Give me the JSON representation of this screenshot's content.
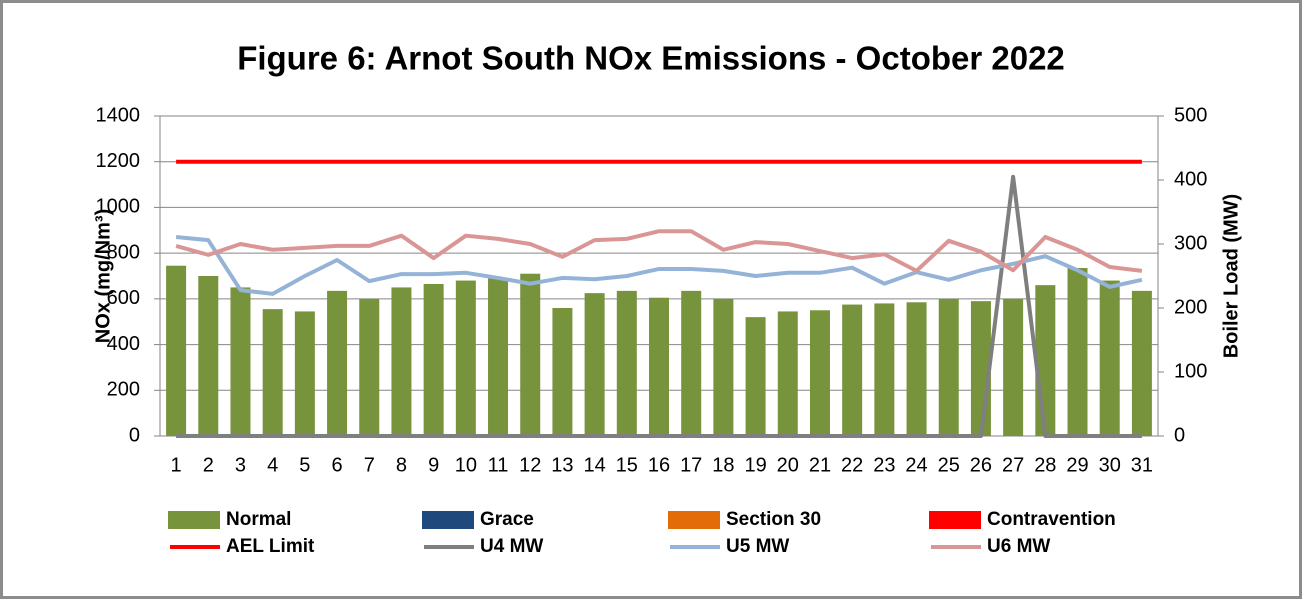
{
  "chart_data": {
    "type": "bar",
    "title": "Figure 6: Arnot South NOx Emissions -  October 2022",
    "ylabel": "NOx (mg/Nm³)",
    "y2label": "Boiler Load (MW)",
    "categories": [
      "1",
      "2",
      "3",
      "4",
      "5",
      "6",
      "7",
      "8",
      "9",
      "10",
      "11",
      "12",
      "13",
      "14",
      "15",
      "16",
      "17",
      "18",
      "19",
      "20",
      "21",
      "22",
      "23",
      "24",
      "25",
      "26",
      "27",
      "28",
      "29",
      "30",
      "31"
    ],
    "stacked": true,
    "grid": true,
    "ylim": [
      0,
      1400
    ],
    "yticks": [
      0,
      200,
      400,
      600,
      800,
      1000,
      1200,
      1400
    ],
    "y2lim": [
      0,
      500
    ],
    "y2ticks": [
      0,
      100,
      200,
      300,
      400,
      500
    ],
    "series": [
      {
        "name": "Normal",
        "type": "bar",
        "color": "#77933c",
        "values": [
          745,
          700,
          650,
          555,
          545,
          635,
          600,
          650,
          665,
          680,
          690,
          710,
          560,
          625,
          635,
          605,
          635,
          600,
          520,
          545,
          550,
          575,
          580,
          585,
          600,
          590,
          600,
          660,
          735,
          680,
          635
        ]
      },
      {
        "name": "Grace",
        "type": "bar",
        "color": "#1f497d",
        "values": [
          0,
          0,
          0,
          0,
          0,
          0,
          0,
          0,
          0,
          0,
          0,
          0,
          0,
          0,
          0,
          0,
          0,
          0,
          0,
          0,
          0,
          0,
          0,
          0,
          0,
          0,
          0,
          0,
          0,
          0,
          0
        ]
      },
      {
        "name": "Section 30",
        "type": "bar",
        "color": "#e36c09",
        "values": [
          0,
          0,
          0,
          0,
          0,
          0,
          0,
          0,
          0,
          0,
          0,
          0,
          0,
          0,
          0,
          0,
          0,
          0,
          0,
          0,
          0,
          0,
          0,
          0,
          0,
          0,
          0,
          0,
          0,
          0,
          0
        ]
      },
      {
        "name": "Contravention",
        "type": "bar",
        "color": "#ff0000",
        "values": [
          0,
          0,
          0,
          0,
          0,
          0,
          0,
          0,
          0,
          0,
          0,
          0,
          0,
          0,
          0,
          0,
          0,
          0,
          0,
          0,
          0,
          0,
          0,
          0,
          0,
          0,
          0,
          0,
          0,
          0,
          0
        ]
      },
      {
        "name": "AEL Limit",
        "type": "line",
        "color": "#ff0000",
        "values": [
          1200,
          1200,
          1200,
          1200,
          1200,
          1200,
          1200,
          1200,
          1200,
          1200,
          1200,
          1200,
          1200,
          1200,
          1200,
          1200,
          1200,
          1200,
          1200,
          1200,
          1200,
          1200,
          1200,
          1200,
          1200,
          1200,
          1200,
          1200,
          1200,
          1200,
          1200
        ]
      },
      {
        "name": "U4 MW",
        "type": "line",
        "axis": "y2",
        "color": "#7f7f7f",
        "values": [
          0,
          0,
          0,
          0,
          0,
          0,
          0,
          0,
          0,
          0,
          0,
          0,
          0,
          0,
          0,
          0,
          0,
          0,
          0,
          0,
          0,
          0,
          0,
          0,
          0,
          0,
          405,
          0,
          0,
          0,
          0
        ]
      },
      {
        "name": "U5 MW",
        "type": "line",
        "axis": "y2",
        "color": "#95b3d7",
        "values": [
          311,
          306,
          228,
          222,
          250,
          275,
          242,
          253,
          253,
          255,
          247,
          238,
          247,
          245,
          250,
          261,
          261,
          258,
          250,
          255,
          255,
          263,
          238,
          256,
          244,
          259,
          269,
          281,
          259,
          233,
          244
        ]
      },
      {
        "name": "U6 MW",
        "type": "line",
        "axis": "y2",
        "color": "#d99694",
        "values": [
          297,
          283,
          300,
          291,
          294,
          297,
          297,
          313,
          278,
          313,
          308,
          300,
          280,
          306,
          308,
          320,
          320,
          291,
          303,
          300,
          289,
          278,
          284,
          258,
          305,
          288,
          259,
          311,
          291,
          264,
          258
        ]
      }
    ]
  }
}
